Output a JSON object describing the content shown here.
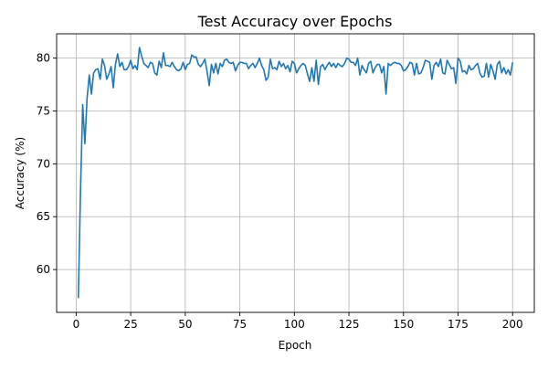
{
  "chart_data": {
    "type": "line",
    "title": "Test Accuracy over Epochs",
    "xlabel": "Epoch",
    "ylabel": "Accuracy (%)",
    "xlim": [
      -8.95,
      209.95
    ],
    "ylim": [
      55.95,
      82.3
    ],
    "xticks": [
      0,
      25,
      50,
      75,
      100,
      125,
      150,
      175,
      200
    ],
    "yticks": [
      60,
      65,
      70,
      75,
      80
    ],
    "grid": true,
    "legend": "none",
    "line_color": "#1f77b4",
    "series": [
      {
        "x": [
          1,
          2,
          3,
          4,
          5,
          6,
          7,
          8,
          9,
          10,
          11,
          12,
          13,
          14,
          15,
          16,
          17,
          18,
          19,
          20,
          21,
          22,
          23,
          24,
          25,
          26,
          27,
          28,
          29,
          30,
          31,
          32,
          33,
          34,
          35,
          36,
          37,
          38,
          39,
          40,
          41,
          42,
          43,
          44,
          45,
          46,
          47,
          48,
          49,
          50,
          51,
          52,
          53,
          54,
          55,
          56,
          57,
          58,
          59,
          60,
          61,
          62,
          63,
          64,
          65,
          66,
          67,
          68,
          69,
          70,
          71,
          72,
          73,
          74,
          75,
          76,
          77,
          78,
          79,
          80,
          81,
          82,
          83,
          84,
          85,
          86,
          87,
          88,
          89,
          90,
          91,
          92,
          93,
          94,
          95,
          96,
          97,
          98,
          99,
          100,
          101,
          102,
          103,
          104,
          105,
          106,
          107,
          108,
          109,
          110,
          111,
          112,
          113,
          114,
          115,
          116,
          117,
          118,
          119,
          120,
          121,
          122,
          123,
          124,
          125,
          126,
          127,
          128,
          129,
          130,
          131,
          132,
          133,
          134,
          135,
          136,
          137,
          138,
          139,
          140,
          141,
          142,
          143,
          144,
          145,
          146,
          147,
          148,
          149,
          150,
          151,
          152,
          153,
          154,
          155,
          156,
          157,
          158,
          159,
          160,
          161,
          162,
          163,
          164,
          165,
          166,
          167,
          168,
          169,
          170,
          171,
          172,
          173,
          174,
          175,
          176,
          177,
          178,
          179,
          180,
          181,
          182,
          183,
          184,
          185,
          186,
          187,
          188,
          189,
          190,
          191,
          192,
          193,
          194,
          195,
          196,
          197,
          198,
          199,
          200
        ],
        "values": [
          57.3,
          67.5,
          75.6,
          71.9,
          76.2,
          78.4,
          76.6,
          78.6,
          78.9,
          79.0,
          78.0,
          79.9,
          79.3,
          78.0,
          78.5,
          79.2,
          77.2,
          79.4,
          80.4,
          79.2,
          79.6,
          78.9,
          78.9,
          79.2,
          79.8,
          79.0,
          79.3,
          78.9,
          81.0,
          80.2,
          79.5,
          79.3,
          79.1,
          79.6,
          79.5,
          78.6,
          78.4,
          79.7,
          79.1,
          80.5,
          79.3,
          79.3,
          79.2,
          79.6,
          79.2,
          78.9,
          78.8,
          79.0,
          79.6,
          78.9,
          79.4,
          79.5,
          80.3,
          80.1,
          80.1,
          79.4,
          79.2,
          79.5,
          79.9,
          78.7,
          77.4,
          79.4,
          78.6,
          79.5,
          78.5,
          79.5,
          79.2,
          79.8,
          79.9,
          79.6,
          79.5,
          79.6,
          78.8,
          79.3,
          79.6,
          79.6,
          79.5,
          79.5,
          79.0,
          79.3,
          79.5,
          79.1,
          79.5,
          80.0,
          79.3,
          78.9,
          77.9,
          78.2,
          79.9,
          79.0,
          79.1,
          78.9,
          79.7,
          79.2,
          79.5,
          79.0,
          79.3,
          78.7,
          79.7,
          79.5,
          78.6,
          79.0,
          79.3,
          79.5,
          79.3,
          78.5,
          77.8,
          79.1,
          77.8,
          79.8,
          77.5,
          79.2,
          79.4,
          78.9,
          79.3,
          79.6,
          79.2,
          79.5,
          79.1,
          79.5,
          79.3,
          79.2,
          79.5,
          80.0,
          79.9,
          79.6,
          79.6,
          79.3,
          80.0,
          78.4,
          79.3,
          78.9,
          78.6,
          79.5,
          79.7,
          78.6,
          79.1,
          79.4,
          79.4,
          78.6,
          79.2,
          76.6,
          79.5,
          79.3,
          79.5,
          79.6,
          79.5,
          79.5,
          79.3,
          78.8,
          78.9,
          79.2,
          79.6,
          79.5,
          78.4,
          79.5,
          78.5,
          78.6,
          79.1,
          79.8,
          79.7,
          79.6,
          78.0,
          79.3,
          79.6,
          79.2,
          79.9,
          78.6,
          78.5,
          79.8,
          79.4,
          79.0,
          79.1,
          77.6,
          80.0,
          79.7,
          78.7,
          78.8,
          78.5,
          79.3,
          78.9,
          79.0,
          79.3,
          79.5,
          78.6,
          78.2,
          78.3,
          79.5,
          78.2,
          79.4,
          78.8,
          78.0,
          79.4,
          79.7,
          78.6,
          79.1,
          78.5,
          78.9,
          78.4,
          79.6
        ]
      }
    ]
  }
}
